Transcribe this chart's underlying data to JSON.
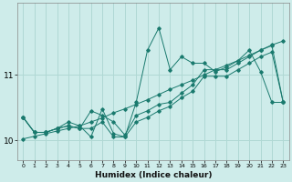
{
  "xlabel": "Humidex (Indice chaleur)",
  "ylabel": "",
  "background_color": "#ceecea",
  "grid_color": "#b0d8d4",
  "line_color": "#1a7a6e",
  "xlim": [
    -0.5,
    23.5
  ],
  "ylim": [
    9.7,
    12.1
  ],
  "yticks": [
    10,
    11
  ],
  "xticks": [
    0,
    1,
    2,
    3,
    4,
    5,
    6,
    7,
    8,
    9,
    10,
    11,
    12,
    13,
    14,
    15,
    16,
    17,
    18,
    19,
    20,
    21,
    22,
    23
  ],
  "series": [
    [
      10.35,
      10.12,
      10.12,
      10.18,
      10.28,
      10.22,
      10.05,
      10.48,
      10.1,
      10.05,
      10.58,
      11.38,
      11.72,
      11.08,
      11.28,
      11.18,
      11.18,
      11.05,
      11.12,
      11.22,
      11.38,
      11.05,
      10.58,
      10.58
    ],
    [
      10.35,
      10.12,
      10.12,
      10.18,
      10.22,
      10.18,
      10.45,
      10.38,
      10.28,
      10.08,
      10.38,
      10.45,
      10.55,
      10.58,
      10.72,
      10.85,
      11.08,
      11.08,
      11.08,
      11.18,
      11.28,
      11.38,
      11.45,
      10.58
    ],
    [
      10.35,
      10.12,
      10.12,
      10.18,
      10.22,
      10.18,
      10.18,
      10.28,
      10.05,
      10.05,
      10.28,
      10.35,
      10.45,
      10.52,
      10.65,
      10.75,
      10.98,
      10.98,
      10.98,
      11.08,
      11.18,
      11.28,
      11.35,
      10.58
    ],
    [
      10.02,
      10.06,
      10.1,
      10.14,
      10.18,
      10.22,
      10.28,
      10.34,
      10.42,
      10.48,
      10.55,
      10.62,
      10.7,
      10.78,
      10.85,
      10.92,
      11.0,
      11.08,
      11.15,
      11.22,
      11.3,
      11.38,
      11.46,
      11.52
    ]
  ]
}
